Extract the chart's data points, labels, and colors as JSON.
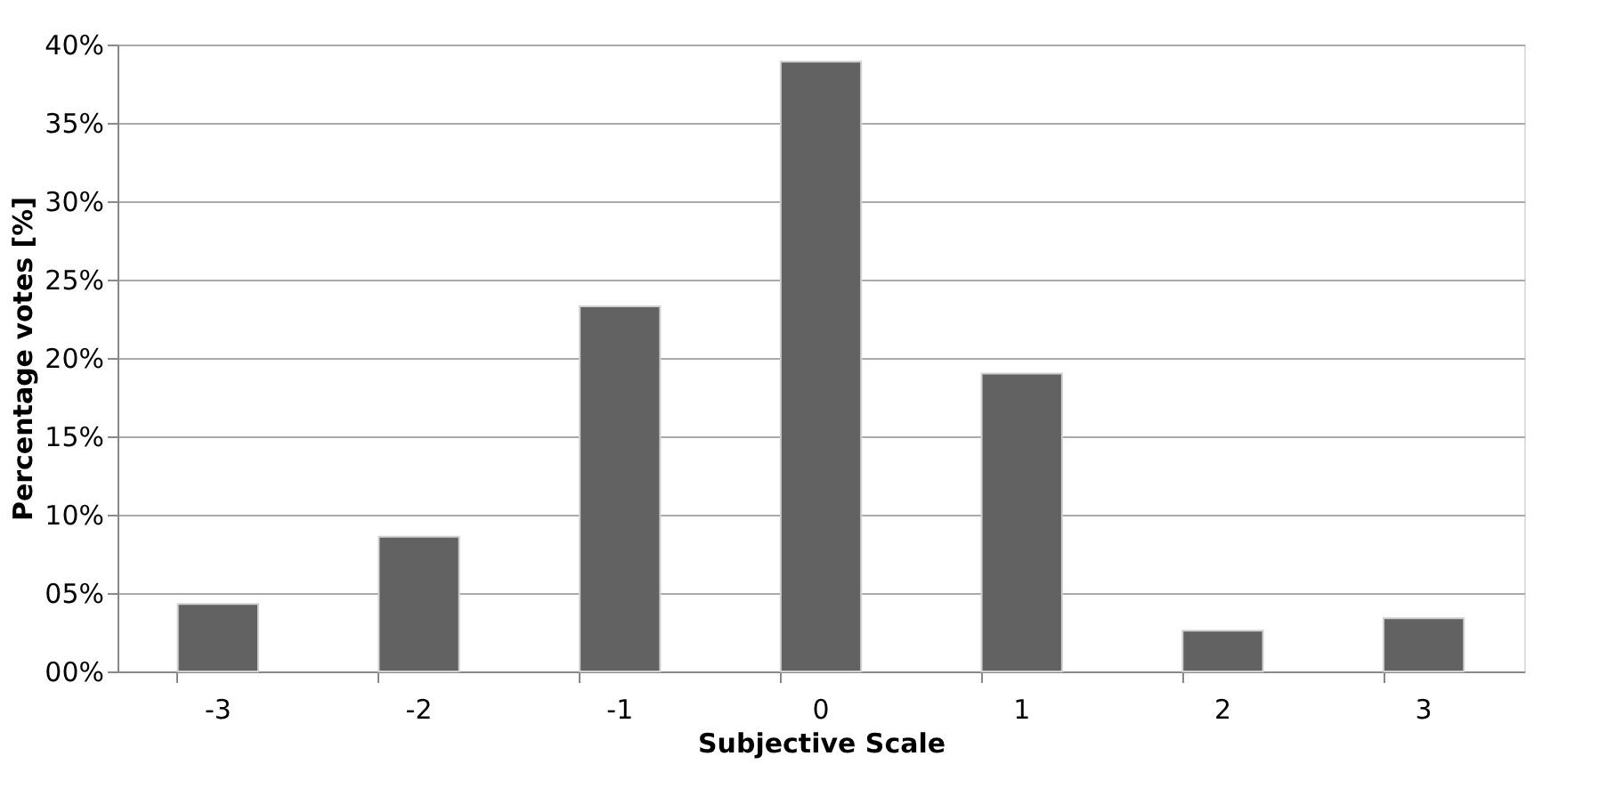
{
  "chart_data": {
    "type": "bar",
    "xlabel": "Subjective Scale",
    "ylabel": "Percentage votes [%]",
    "categories": [
      "-3",
      "-2",
      "-1",
      "0",
      "1",
      "2",
      "3"
    ],
    "values": [
      4.3,
      8.6,
      23.3,
      38.9,
      19.0,
      2.6,
      3.4
    ],
    "color": "#626262",
    "ylim": [
      0,
      40
    ],
    "yticks": [
      {
        "value": 0,
        "label": "00%"
      },
      {
        "value": 5,
        "label": "05%"
      },
      {
        "value": 10,
        "label": "10%"
      },
      {
        "value": 15,
        "label": "15%"
      },
      {
        "value": 20,
        "label": "20%"
      },
      {
        "value": 25,
        "label": "25%"
      },
      {
        "value": 30,
        "label": "30%"
      },
      {
        "value": 35,
        "label": "35%"
      },
      {
        "value": 40,
        "label": "40%"
      }
    ],
    "grid": "y"
  }
}
